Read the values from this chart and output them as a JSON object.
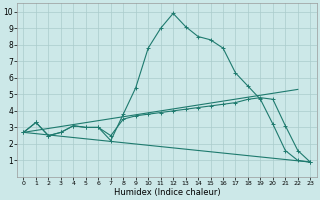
{
  "title": "",
  "xlabel": "Humidex (Indice chaleur)",
  "xlim": [
    -0.5,
    23.5
  ],
  "ylim": [
    0,
    10.5
  ],
  "xticks": [
    0,
    1,
    2,
    3,
    4,
    5,
    6,
    7,
    8,
    9,
    10,
    11,
    12,
    13,
    14,
    15,
    16,
    17,
    18,
    19,
    20,
    21,
    22,
    23
  ],
  "yticks": [
    1,
    2,
    3,
    4,
    5,
    6,
    7,
    8,
    9,
    10
  ],
  "bg_color": "#cce8e8",
  "grid_color": "#aacccc",
  "line_color": "#1e7a6e",
  "line1_x": [
    0,
    1,
    2,
    3,
    4,
    5,
    6,
    7,
    8,
    9,
    10,
    11,
    12,
    13,
    14,
    15,
    16,
    17,
    18,
    19,
    20,
    21,
    22,
    23
  ],
  "line1_y": [
    2.7,
    3.3,
    2.5,
    2.7,
    3.1,
    3.0,
    3.0,
    2.2,
    3.8,
    5.4,
    7.8,
    9.0,
    9.9,
    9.1,
    8.5,
    8.3,
    7.8,
    6.3,
    5.5,
    4.7,
    3.2,
    1.6,
    1.0,
    0.9
  ],
  "line2_x": [
    0,
    1,
    2,
    3,
    4,
    5,
    6,
    7,
    8,
    9,
    10,
    11,
    12,
    13,
    14,
    15,
    16,
    17,
    18,
    19,
    20,
    21,
    22,
    23
  ],
  "line2_y": [
    2.7,
    3.3,
    2.5,
    2.7,
    3.1,
    3.0,
    3.0,
    2.5,
    3.5,
    3.7,
    3.8,
    3.9,
    4.0,
    4.1,
    4.2,
    4.3,
    4.4,
    4.5,
    4.7,
    4.8,
    4.7,
    3.1,
    1.6,
    0.9
  ],
  "line3_x": [
    0,
    22
  ],
  "line3_y": [
    2.7,
    5.3
  ],
  "line4_x": [
    0,
    23
  ],
  "line4_y": [
    2.7,
    0.9
  ]
}
